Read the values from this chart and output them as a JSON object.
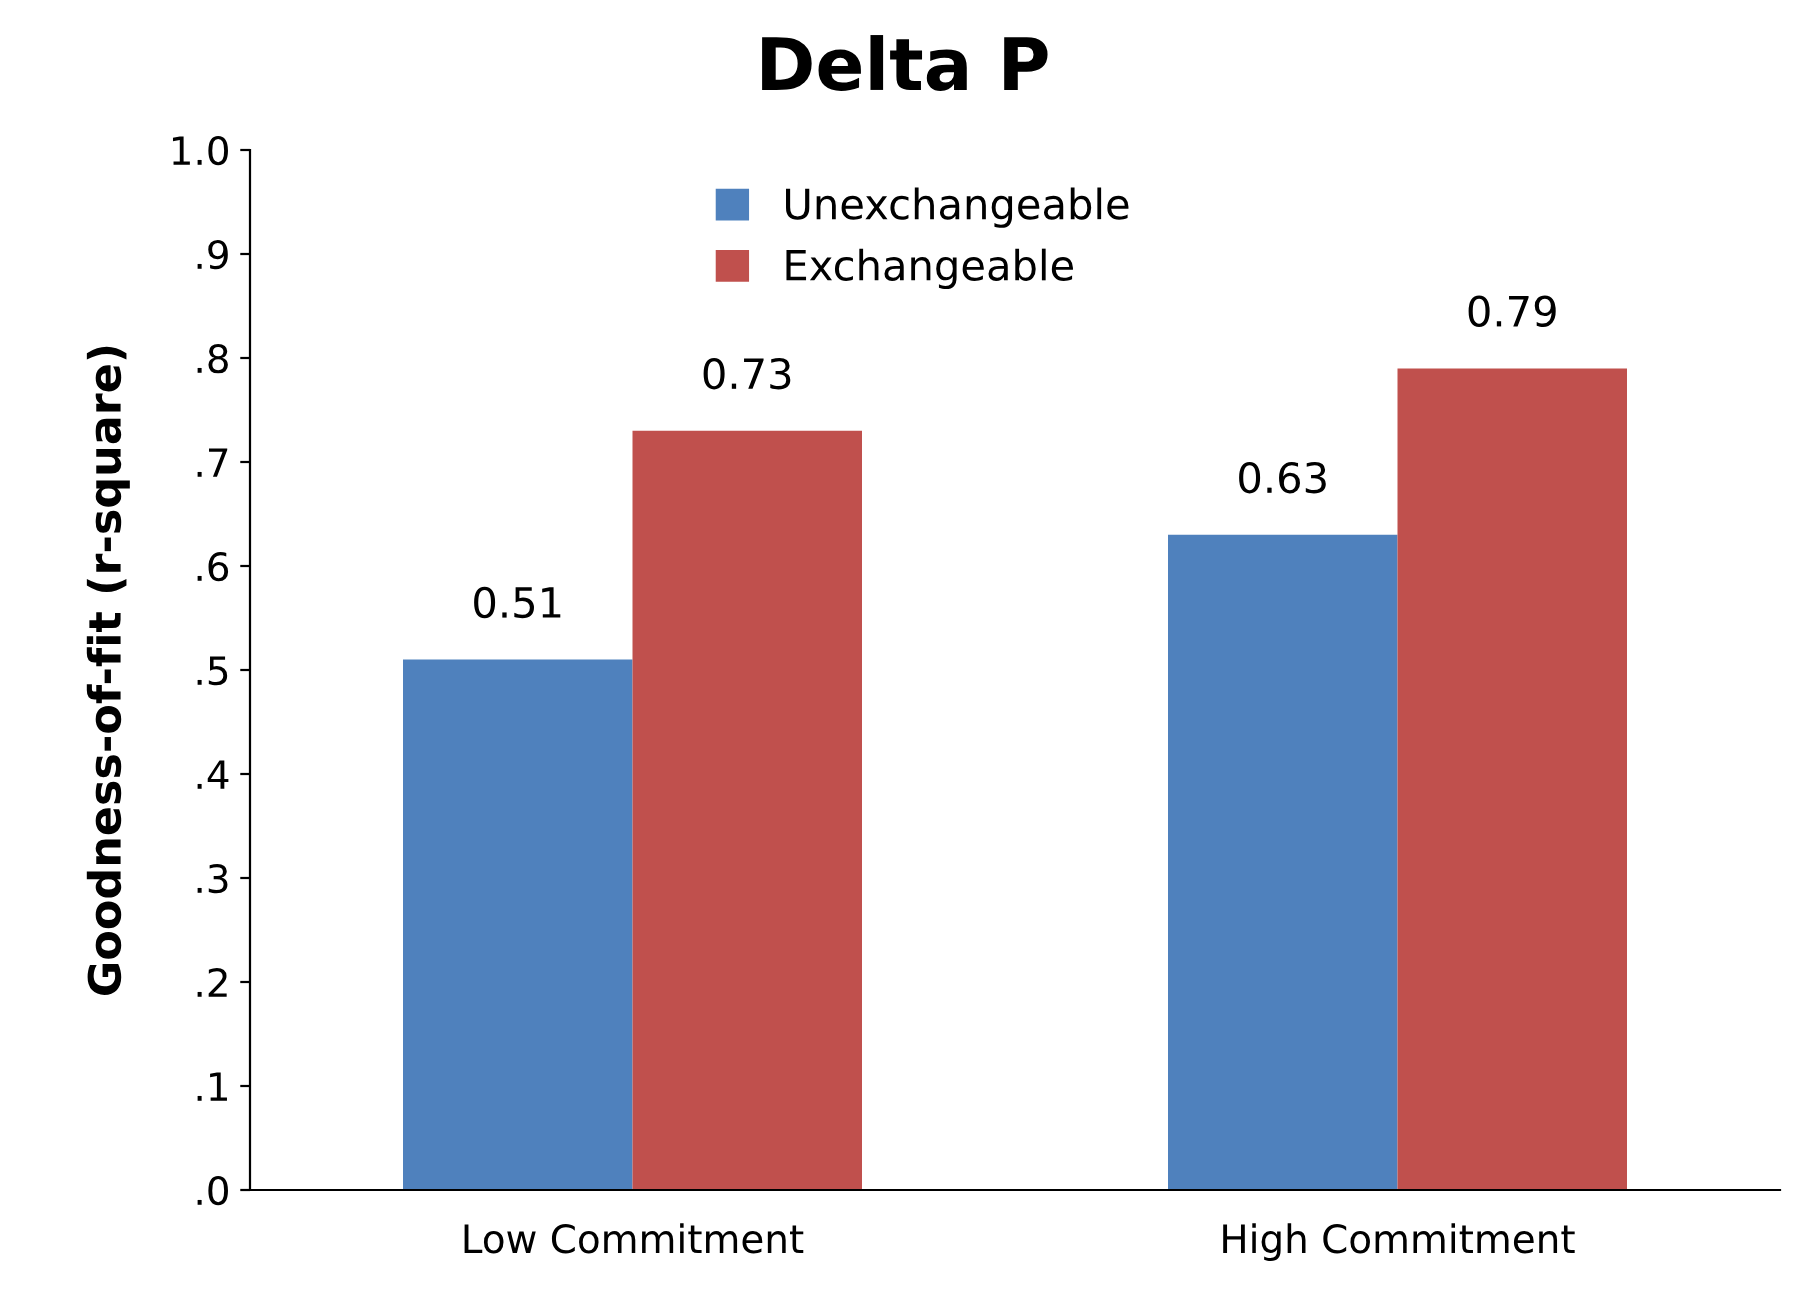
{
  "chart_data": {
    "type": "bar",
    "title": "Delta P",
    "ylabel": "Goodness-of-fit (r-square)",
    "categories": [
      "Low Commitment",
      "High Commitment"
    ],
    "series": [
      {
        "name": "Unexchangeable",
        "color": "#4f81bd",
        "values": [
          0.51,
          0.63
        ]
      },
      {
        "name": "Exchangeable",
        "color": "#c0504d",
        "values": [
          0.73,
          0.79
        ]
      }
    ],
    "ylim": [
      0,
      1
    ],
    "yticks": [
      {
        "value": 0,
        "label": ".0"
      },
      {
        "value": 0.1,
        "label": ".1"
      },
      {
        "value": 0.2,
        "label": ".2"
      },
      {
        "value": 0.3,
        "label": ".3"
      },
      {
        "value": 0.4,
        "label": ".4"
      },
      {
        "value": 0.5,
        "label": ".5"
      },
      {
        "value": 0.6,
        "label": ".6"
      },
      {
        "value": 0.7,
        "label": ".7"
      },
      {
        "value": 0.8,
        "label": ".8"
      },
      {
        "value": 0.9,
        "label": ".9"
      },
      {
        "value": 1.0,
        "label": "1.0"
      }
    ],
    "data_labels": true,
    "grid": false,
    "legend": "top"
  }
}
